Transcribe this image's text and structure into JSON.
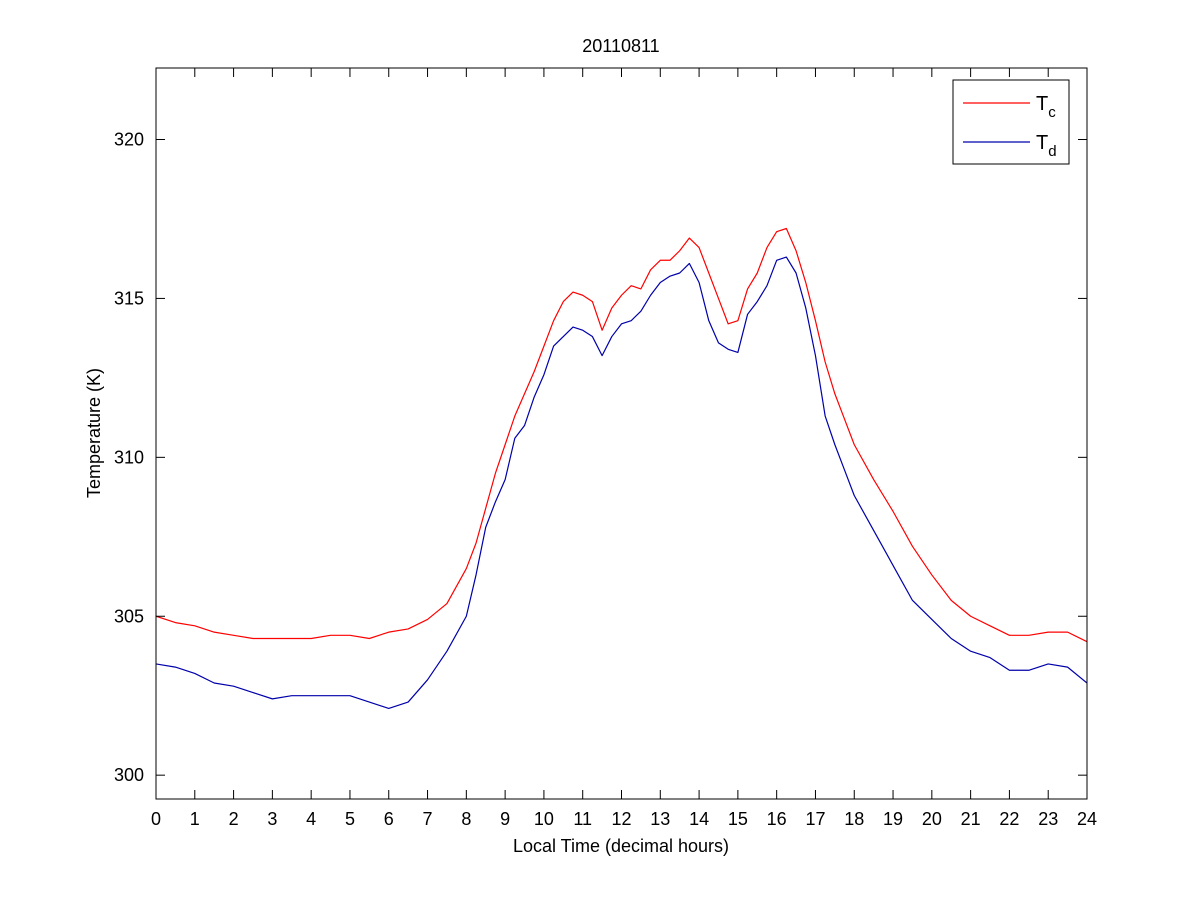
{
  "chart_data": {
    "type": "line",
    "title": "20110811",
    "xlabel": "Local Time (decimal hours)",
    "ylabel": "Temperature (K)",
    "xlim": [
      0,
      24
    ],
    "ylim": [
      299.25,
      322.25
    ],
    "xticks": [
      0,
      1,
      2,
      3,
      4,
      5,
      6,
      7,
      8,
      9,
      10,
      11,
      12,
      13,
      14,
      15,
      16,
      17,
      18,
      19,
      20,
      21,
      22,
      23,
      24
    ],
    "xtick_labels": [
      "0",
      "1",
      "2",
      "3",
      "4",
      "5",
      "6",
      "7",
      "8",
      "9",
      "10",
      "11",
      "12",
      "13",
      "14",
      "15",
      "16",
      "17",
      "18",
      "19",
      "20",
      "21",
      "22",
      "23",
      "24"
    ],
    "yticks": [
      300,
      305,
      310,
      315,
      320
    ],
    "ytick_labels": [
      "300",
      "305",
      "310",
      "315",
      "320"
    ],
    "grid": false,
    "legend_position": "top-right",
    "series": [
      {
        "name": "T",
        "subscript": "c",
        "color": "#ff0000",
        "x": [
          0,
          0.5,
          1,
          1.5,
          2,
          2.5,
          3,
          3.5,
          4,
          4.5,
          5,
          5.5,
          6,
          6.5,
          7,
          7.5,
          8,
          8.25,
          8.5,
          8.75,
          9,
          9.25,
          9.5,
          9.75,
          10,
          10.25,
          10.5,
          10.75,
          11,
          11.25,
          11.5,
          11.75,
          12,
          12.25,
          12.5,
          12.75,
          13,
          13.25,
          13.5,
          13.75,
          14,
          14.25,
          14.5,
          14.75,
          15,
          15.25,
          15.5,
          15.75,
          16,
          16.25,
          16.5,
          16.75,
          17,
          17.25,
          17.5,
          17.75,
          18,
          18.5,
          19,
          19.5,
          20,
          20.5,
          21,
          21.5,
          22,
          22.5,
          23,
          23.5,
          24
        ],
        "y": [
          305.0,
          304.8,
          304.7,
          304.5,
          304.4,
          304.3,
          304.3,
          304.3,
          304.3,
          304.4,
          304.4,
          304.3,
          304.5,
          304.6,
          304.9,
          305.4,
          306.5,
          307.3,
          308.4,
          309.5,
          310.4,
          311.3,
          312.0,
          312.7,
          313.5,
          314.3,
          314.9,
          315.2,
          315.1,
          314.9,
          314.0,
          314.7,
          315.1,
          315.4,
          315.3,
          315.9,
          316.2,
          316.2,
          316.5,
          316.9,
          316.6,
          315.8,
          315.0,
          314.2,
          314.3,
          315.3,
          315.8,
          316.6,
          317.1,
          317.2,
          316.5,
          315.5,
          314.3,
          313.0,
          312.0,
          311.2,
          310.4,
          309.3,
          308.3,
          307.2,
          306.3,
          305.5,
          305.0,
          304.7,
          304.4,
          304.4,
          304.5,
          304.5,
          304.2
        ]
      },
      {
        "name": "T",
        "subscript": "d",
        "color": "#0000aa",
        "x": [
          0,
          0.5,
          1,
          1.5,
          2,
          2.5,
          3,
          3.5,
          4,
          4.5,
          5,
          5.5,
          6,
          6.5,
          7,
          7.5,
          8,
          8.25,
          8.5,
          8.75,
          9,
          9.25,
          9.5,
          9.75,
          10,
          10.25,
          10.5,
          10.75,
          11,
          11.25,
          11.5,
          11.75,
          12,
          12.25,
          12.5,
          12.75,
          13,
          13.25,
          13.5,
          13.75,
          14,
          14.25,
          14.5,
          14.75,
          15,
          15.25,
          15.5,
          15.75,
          16,
          16.25,
          16.5,
          16.75,
          17,
          17.25,
          17.5,
          17.75,
          18,
          18.5,
          19,
          19.5,
          20,
          20.5,
          21,
          21.5,
          22,
          22.5,
          23,
          23.5,
          24
        ],
        "y": [
          303.5,
          303.4,
          303.2,
          302.9,
          302.8,
          302.6,
          302.4,
          302.5,
          302.5,
          302.5,
          302.5,
          302.3,
          302.1,
          302.3,
          303.0,
          303.9,
          305.0,
          306.3,
          307.8,
          308.6,
          309.3,
          310.6,
          311.0,
          311.9,
          312.6,
          313.5,
          313.8,
          314.1,
          314.0,
          313.8,
          313.2,
          313.8,
          314.2,
          314.3,
          314.6,
          315.1,
          315.5,
          315.7,
          315.8,
          316.1,
          315.5,
          314.3,
          313.6,
          313.4,
          313.3,
          314.5,
          314.9,
          315.4,
          316.2,
          316.3,
          315.8,
          314.7,
          313.2,
          311.3,
          310.4,
          309.6,
          308.8,
          307.7,
          306.6,
          305.5,
          304.9,
          304.3,
          303.9,
          303.7,
          303.3,
          303.3,
          303.5,
          303.4,
          302.9
        ]
      }
    ]
  }
}
